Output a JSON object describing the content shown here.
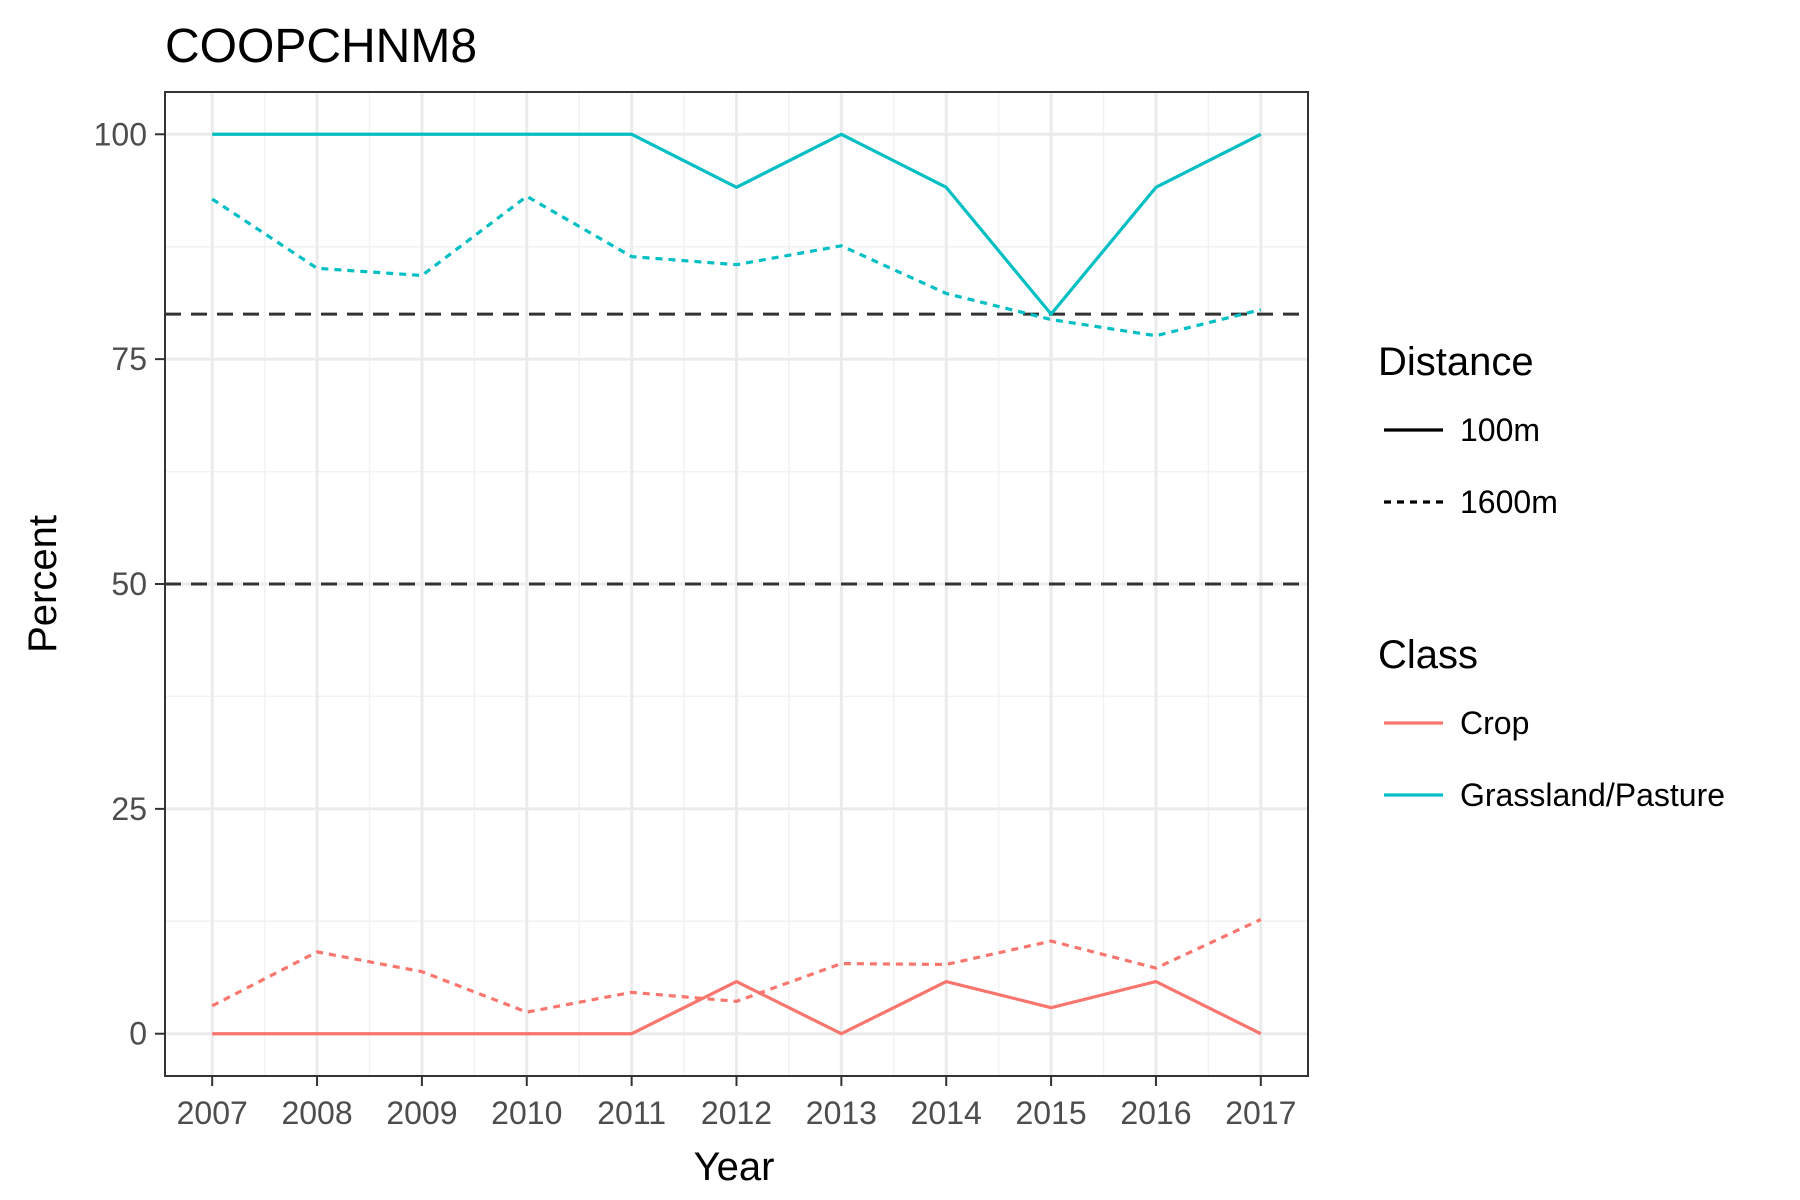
{
  "chart_data": {
    "type": "line",
    "title": "COOPCHNM8",
    "xlabel": "Year",
    "ylabel": "Percent",
    "x": [
      2007,
      2008,
      2009,
      2010,
      2011,
      2012,
      2013,
      2014,
      2015,
      2016,
      2017
    ],
    "x_tick_labels": [
      "2007",
      "2008",
      "2009",
      "2010",
      "2011",
      "2012",
      "2013",
      "2014",
      "2015",
      "2016",
      "2017"
    ],
    "y_ticks": [
      0,
      25,
      50,
      75,
      100
    ],
    "y_tick_labels": [
      "0",
      "25",
      "50",
      "75",
      "100"
    ],
    "xlim": [
      2006.55,
      2017.45
    ],
    "ylim": [
      -4.7,
      104.7
    ],
    "grid": true,
    "reference_lines": [
      {
        "y": 80,
        "style": "dashed",
        "color": "#333333"
      },
      {
        "y": 50,
        "style": "dashed",
        "color": "#333333"
      }
    ],
    "colors": {
      "Crop": "#F8766D",
      "Grassland/Pasture": "#00BFC4"
    },
    "series": [
      {
        "class": "Grassland/Pasture",
        "distance": "100m",
        "style": "solid",
        "values": [
          100,
          100,
          100,
          100,
          100,
          94.1,
          100,
          94.1,
          80,
          94.1,
          100
        ]
      },
      {
        "class": "Grassland/Pasture",
        "distance": "1600m",
        "style": "dashed",
        "values": [
          92.8,
          85.1,
          84.3,
          93.1,
          86.4,
          85.5,
          87.6,
          82.3,
          79.4,
          77.6,
          80.5
        ]
      },
      {
        "class": "Crop",
        "distance": "100m",
        "style": "solid",
        "values": [
          0,
          0,
          0,
          0,
          0,
          5.8,
          0,
          5.8,
          2.9,
          5.8,
          0
        ]
      },
      {
        "class": "Crop",
        "distance": "1600m",
        "style": "dashed",
        "values": [
          3.1,
          9.1,
          6.9,
          2.4,
          4.6,
          3.6,
          7.8,
          7.7,
          10.3,
          7.3,
          12.7
        ]
      }
    ],
    "legend": {
      "placement": "right",
      "groups": [
        {
          "title": "Distance",
          "entries": [
            {
              "label": "100m",
              "style": "solid",
              "color": "#000000"
            },
            {
              "label": "1600m",
              "style": "dashed",
              "color": "#000000"
            }
          ]
        },
        {
          "title": "Class",
          "entries": [
            {
              "label": "Crop",
              "style": "solid",
              "color": "#F8766D"
            },
            {
              "label": "Grassland/Pasture",
              "style": "solid",
              "color": "#00BFC4"
            }
          ]
        }
      ]
    }
  }
}
